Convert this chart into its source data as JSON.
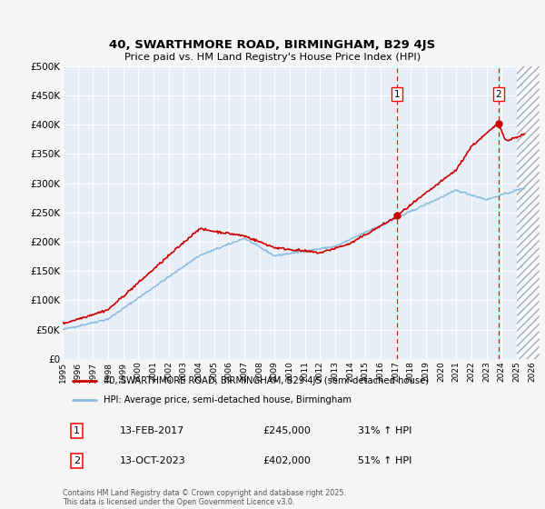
{
  "title": "40, SWARTHMORE ROAD, BIRMINGHAM, B29 4JS",
  "subtitle": "Price paid vs. HM Land Registry's House Price Index (HPI)",
  "red_label": "40, SWARTHMORE ROAD, BIRMINGHAM, B29 4JS (semi-detached house)",
  "blue_label": "HPI: Average price, semi-detached house, Birmingham",
  "annotation1": {
    "num": "1",
    "date": "13-FEB-2017",
    "price": "£245,000",
    "pct": "31% ↑ HPI",
    "x_year": 2017.1
  },
  "annotation2": {
    "num": "2",
    "date": "13-OCT-2023",
    "price": "£402,000",
    "pct": "51% ↑ HPI",
    "x_year": 2023.8
  },
  "footnote": "Contains HM Land Registry data © Crown copyright and database right 2025.\nThis data is licensed under the Open Government Licence v3.0.",
  "ylim": [
    0,
    500000
  ],
  "yticks": [
    0,
    50000,
    100000,
    150000,
    200000,
    250000,
    300000,
    350000,
    400000,
    450000,
    500000
  ],
  "xlim_start": 1995,
  "xlim_end": 2026.5,
  "background_color": "#f0f4ff",
  "plot_bg": "#e8eef8",
  "red_color": "#cc0000",
  "blue_color": "#88bbdd",
  "grid_color": "#ffffff",
  "sale1_year": 2017.1,
  "sale1_price": 245000,
  "sale2_year": 2023.8,
  "sale2_price": 402000,
  "hatch_start": 2025.0
}
